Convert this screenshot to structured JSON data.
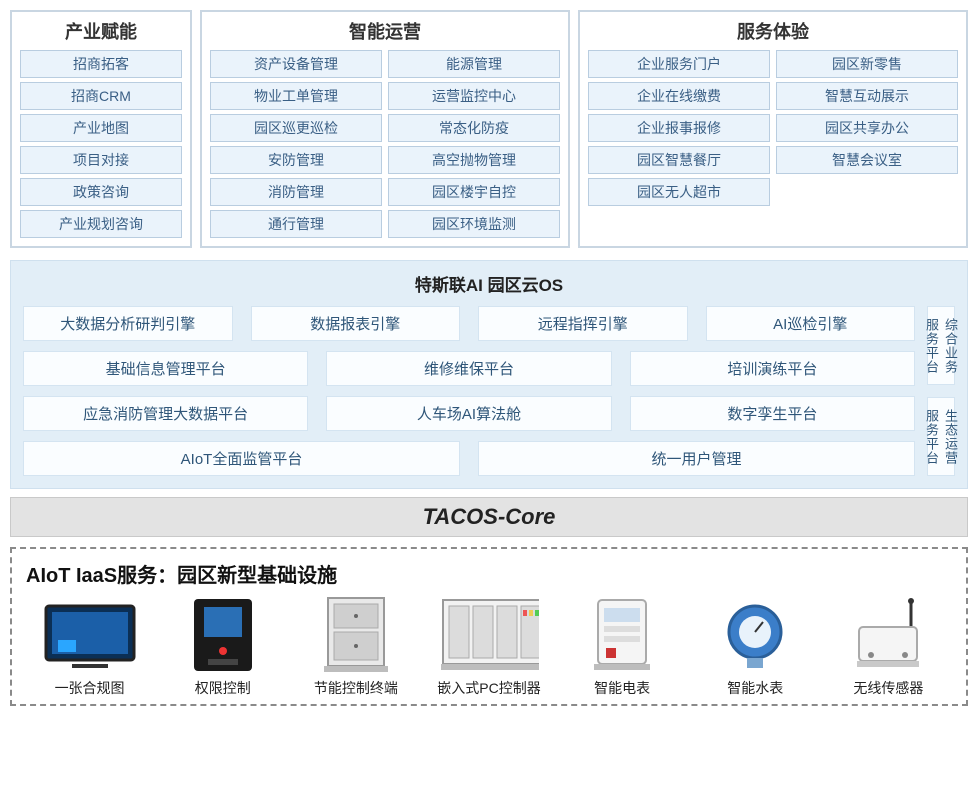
{
  "colors": {
    "item_border": "#b9cde0",
    "item_bg": "#eaf3fb",
    "item_text": "#3a5f85",
    "os_bg": "#e2eef7",
    "os_box_bg": "#fafdff",
    "os_box_border": "#d4e4f1",
    "core_bg": "#e3e3e3",
    "dash_border": "#8a8a8a"
  },
  "top": {
    "cols": [
      {
        "title": "产业赋能",
        "groups": [
          [
            "招商拓客",
            "招商CRM",
            "产业地图",
            "项目对接",
            "政策咨询",
            "产业规划咨询"
          ]
        ]
      },
      {
        "title": "智能运营",
        "groups": [
          [
            "资产设备管理",
            "物业工单管理",
            "园区巡更巡检",
            "安防管理",
            "消防管理",
            "通行管理"
          ],
          [
            "能源管理",
            "运营监控中心",
            "常态化防疫",
            "高空抛物管理",
            "园区楼宇自控",
            "园区环境监测"
          ]
        ]
      },
      {
        "title": "服务体验",
        "groups": [
          [
            "企业服务门户",
            "企业在线缴费",
            "企业报事报修",
            "园区智慧餐厅",
            "园区无人超市"
          ],
          [
            "园区新零售",
            "智慧互动展示",
            "园区共享办公",
            "智慧会议室"
          ]
        ]
      }
    ]
  },
  "os": {
    "title": "特斯联AI 园区云OS",
    "rows": [
      [
        "大数据分析研判引擎",
        "数据报表引擎",
        "远程指挥引擎",
        "AI巡检引擎"
      ],
      [
        "基础信息管理平台",
        "维修维保平台",
        "培训演练平台"
      ],
      [
        "应急消防管理大数据平台",
        "人车场AI算法舱",
        "数字孪生平台"
      ],
      [
        "AIoT全面监管平台",
        "统一用户管理"
      ]
    ],
    "side": [
      "综合业务服务平台",
      "生态运营服务平台"
    ]
  },
  "core": {
    "label": "TACOS-Core"
  },
  "iaas": {
    "title": "AIoT IaaS服务：园区新型基础设施",
    "devices": [
      {
        "label": "一张合规图",
        "icon": "monitor"
      },
      {
        "label": "权限控制",
        "icon": "access"
      },
      {
        "label": "节能控制终端",
        "icon": "cabinet"
      },
      {
        "label": "嵌入式PC控制器",
        "icon": "rack"
      },
      {
        "label": "智能电表",
        "icon": "emeter"
      },
      {
        "label": "智能水表",
        "icon": "wmeter"
      },
      {
        "label": "无线传感器",
        "icon": "sensor"
      }
    ]
  }
}
